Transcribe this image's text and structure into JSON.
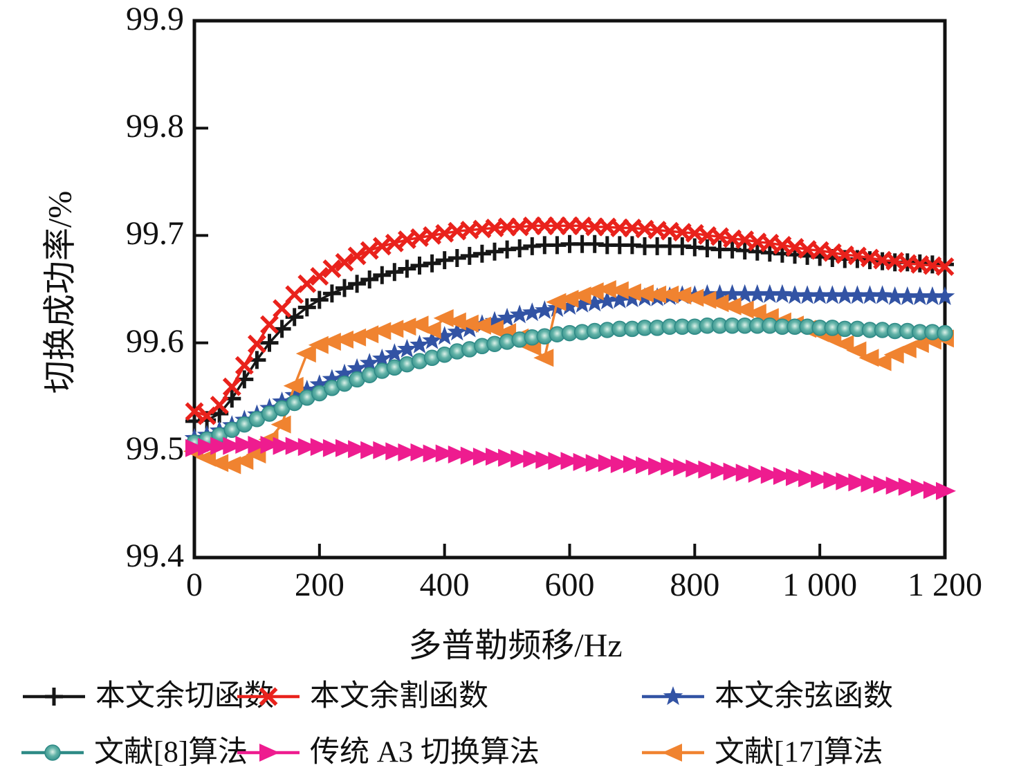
{
  "chart_data": {
    "type": "line",
    "title": "",
    "xlabel": "多普勒频移/Hz",
    "ylabel": "切换成功率/%",
    "xlim": [
      0,
      1200
    ],
    "ylim": [
      99.4,
      99.9
    ],
    "grid": false,
    "legend_position": "below-two-rows",
    "x_ticks": [
      {
        "value": 0,
        "label": "0"
      },
      {
        "value": 200,
        "label": "200"
      },
      {
        "value": 400,
        "label": "400"
      },
      {
        "value": 600,
        "label": "600"
      },
      {
        "value": 800,
        "label": "800"
      },
      {
        "value": 1000,
        "label": "1 000"
      },
      {
        "value": 1200,
        "label": "1 200"
      }
    ],
    "y_ticks": [
      {
        "value": 99.9,
        "label": "99.9"
      },
      {
        "value": 99.8,
        "label": "99.8"
      },
      {
        "value": 99.7,
        "label": "99.7"
      },
      {
        "value": 99.6,
        "label": "99.6"
      },
      {
        "value": 99.5,
        "label": "99.5"
      },
      {
        "value": 99.4,
        "label": "99.4"
      }
    ],
    "x": [
      0,
      20,
      40,
      60,
      80,
      100,
      120,
      140,
      160,
      180,
      200,
      220,
      240,
      260,
      280,
      300,
      320,
      340,
      360,
      380,
      400,
      420,
      440,
      460,
      480,
      500,
      520,
      540,
      560,
      580,
      600,
      620,
      640,
      660,
      680,
      700,
      720,
      740,
      760,
      780,
      800,
      820,
      840,
      860,
      880,
      900,
      920,
      940,
      960,
      980,
      1000,
      1020,
      1040,
      1060,
      1080,
      1100,
      1120,
      1140,
      1160,
      1180,
      1200
    ],
    "series": [
      {
        "name": "本文余切函数",
        "marker": "plus",
        "color": "#161616",
        "values": [
          99.527,
          99.528,
          99.534,
          99.548,
          99.566,
          99.584,
          99.6,
          99.613,
          99.624,
          99.633,
          99.64,
          99.646,
          99.651,
          99.655,
          99.659,
          99.663,
          99.666,
          99.669,
          99.672,
          99.674,
          99.677,
          99.679,
          99.681,
          99.683,
          99.685,
          99.687,
          99.688,
          99.69,
          99.691,
          99.691,
          99.692,
          99.692,
          99.692,
          99.691,
          99.691,
          99.691,
          99.69,
          99.69,
          99.69,
          99.69,
          99.689,
          99.688,
          99.687,
          99.687,
          99.686,
          99.685,
          99.684,
          99.683,
          99.682,
          99.681,
          99.68,
          99.679,
          99.678,
          99.678,
          99.677,
          99.676,
          99.675,
          99.675,
          99.674,
          99.673,
          99.673
        ]
      },
      {
        "name": "本文余割函数",
        "marker": "x",
        "color": "#e9221c",
        "values": [
          99.536,
          99.532,
          99.542,
          99.559,
          99.579,
          99.599,
          99.617,
          99.632,
          99.645,
          99.655,
          99.662,
          99.669,
          99.675,
          99.681,
          99.686,
          99.69,
          99.693,
          99.696,
          99.698,
          99.7,
          99.702,
          99.704,
          99.705,
          99.706,
          99.707,
          99.708,
          99.708,
          99.709,
          99.709,
          99.709,
          99.709,
          99.709,
          99.708,
          99.708,
          99.707,
          99.707,
          99.706,
          99.705,
          99.704,
          99.703,
          99.702,
          99.7,
          99.699,
          99.697,
          99.696,
          99.694,
          99.693,
          99.691,
          99.689,
          99.687,
          99.686,
          99.684,
          99.682,
          99.681,
          99.679,
          99.677,
          99.676,
          99.674,
          99.673,
          99.672,
          99.671
        ]
      },
      {
        "name": "本文余弦函数",
        "marker": "star",
        "color": "#3253a4",
        "values": [
          99.511,
          99.514,
          99.518,
          99.523,
          99.528,
          99.533,
          99.539,
          99.545,
          99.551,
          99.556,
          99.561,
          99.566,
          99.571,
          99.576,
          99.581,
          99.585,
          99.59,
          99.594,
          99.598,
          99.602,
          99.606,
          99.61,
          99.613,
          99.617,
          99.62,
          99.623,
          99.626,
          99.628,
          99.63,
          99.632,
          99.634,
          99.636,
          99.637,
          99.639,
          99.64,
          99.641,
          99.642,
          99.642,
          99.643,
          99.644,
          99.644,
          99.645,
          99.645,
          99.645,
          99.645,
          99.645,
          99.645,
          99.645,
          99.644,
          99.644,
          99.644,
          99.644,
          99.644,
          99.644,
          99.644,
          99.644,
          99.643,
          99.643,
          99.643,
          99.643,
          99.643
        ]
      },
      {
        "name": "文献[8]算法",
        "marker": "circle",
        "color": "#2e8a86",
        "values": [
          99.507,
          99.51,
          99.514,
          99.519,
          99.524,
          99.529,
          99.534,
          99.539,
          99.544,
          99.549,
          99.553,
          99.558,
          99.562,
          99.566,
          99.57,
          99.574,
          99.577,
          99.58,
          99.583,
          99.586,
          99.589,
          99.592,
          99.594,
          99.597,
          99.599,
          99.601,
          99.603,
          99.605,
          99.606,
          99.608,
          99.609,
          99.61,
          99.611,
          99.612,
          99.613,
          99.613,
          99.614,
          99.614,
          99.615,
          99.615,
          99.615,
          99.616,
          99.616,
          99.616,
          99.616,
          99.616,
          99.616,
          99.615,
          99.615,
          99.615,
          99.614,
          99.614,
          99.613,
          99.613,
          99.612,
          99.612,
          99.611,
          99.611,
          99.61,
          99.61,
          99.609
        ]
      },
      {
        "name": "传统 A3 切换算法",
        "marker": "triangle-right",
        "color": "#ee1c8f",
        "values": [
          99.502,
          99.503,
          99.504,
          99.504,
          99.505,
          99.505,
          99.505,
          99.504,
          99.504,
          99.503,
          99.503,
          99.502,
          99.502,
          99.501,
          99.5,
          99.5,
          99.499,
          99.498,
          99.498,
          99.497,
          99.497,
          99.496,
          99.495,
          99.494,
          99.494,
          99.493,
          99.492,
          99.492,
          99.491,
          99.49,
          99.49,
          99.489,
          99.488,
          99.488,
          99.487,
          99.487,
          99.486,
          99.485,
          99.485,
          99.484,
          99.483,
          99.482,
          99.481,
          99.48,
          99.479,
          99.478,
          99.477,
          99.476,
          99.475,
          99.474,
          99.473,
          99.472,
          99.471,
          99.47,
          99.469,
          99.468,
          99.467,
          99.466,
          99.465,
          99.463,
          99.462
        ]
      },
      {
        "name": "文献[17]算法",
        "marker": "triangle-left",
        "color": "#f08330",
        "values": [
          99.499,
          99.493,
          99.488,
          99.486,
          99.49,
          99.496,
          99.51,
          99.524,
          99.56,
          99.59,
          99.598,
          99.601,
          99.603,
          99.605,
          99.608,
          99.611,
          99.613,
          99.615,
          99.617,
          99.612,
          99.623,
          99.62,
          99.618,
          99.616,
          99.613,
          99.61,
          99.605,
          99.596,
          99.586,
          99.638,
          99.641,
          99.644,
          99.648,
          99.65,
          99.649,
          99.647,
          99.646,
          99.645,
          99.645,
          99.644,
          99.642,
          99.64,
          99.637,
          99.634,
          99.631,
          99.628,
          99.624,
          99.62,
          99.617,
          99.613,
          99.609,
          99.604,
          99.599,
          99.593,
          99.586,
          99.582,
          99.589,
          99.594,
          99.599,
          99.602,
          99.604
        ]
      }
    ]
  }
}
